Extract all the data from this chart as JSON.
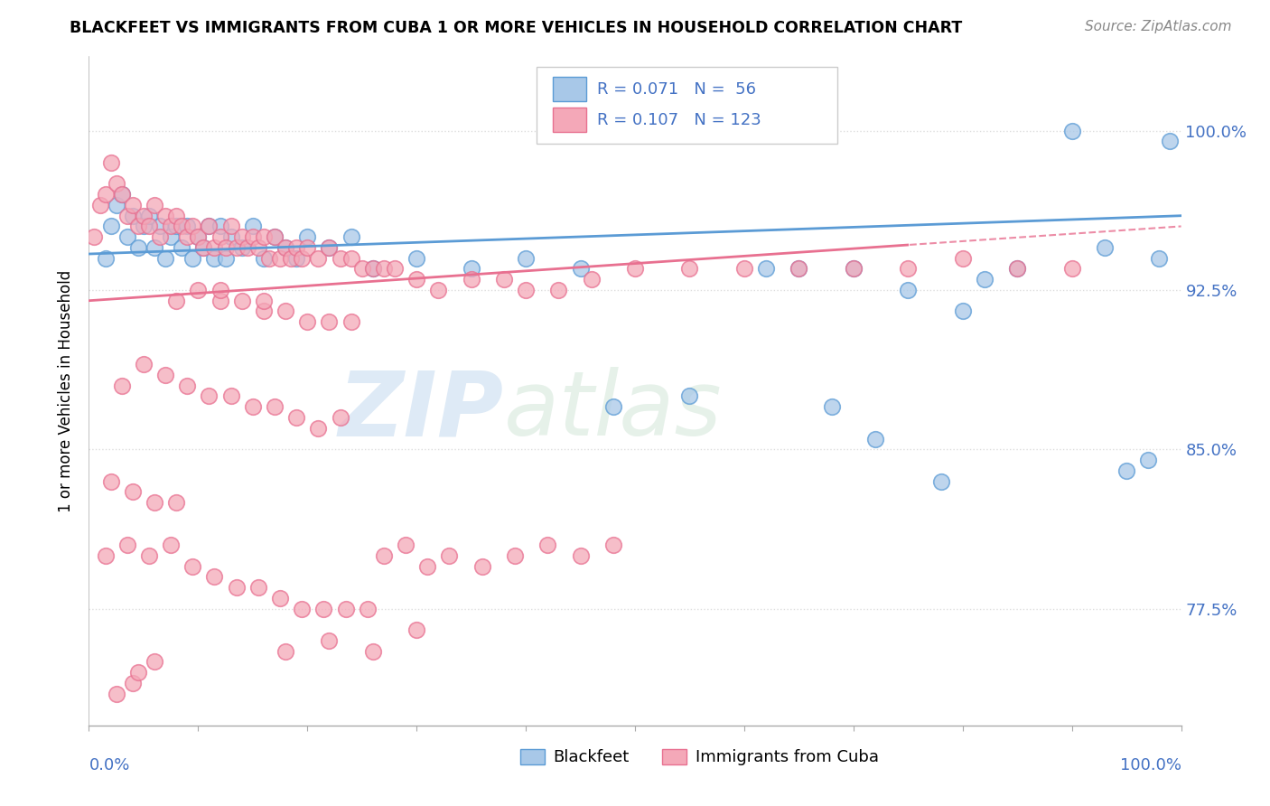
{
  "title": "BLACKFEET VS IMMIGRANTS FROM CUBA 1 OR MORE VEHICLES IN HOUSEHOLD CORRELATION CHART",
  "source": "Source: ZipAtlas.com",
  "ylabel_labels": [
    "77.5%",
    "85.0%",
    "92.5%",
    "100.0%"
  ],
  "ylabel_values": [
    77.5,
    85.0,
    92.5,
    100.0
  ],
  "xmin": 0.0,
  "xmax": 100.0,
  "ymin": 72.0,
  "ymax": 103.5,
  "watermark_zip": "ZIP",
  "watermark_atlas": "atlas",
  "blue_color": "#A8C8E8",
  "blue_edge_color": "#5B9BD5",
  "pink_color": "#F4A8B8",
  "pink_edge_color": "#E87090",
  "blue_line_color": "#5B9BD5",
  "pink_line_color": "#E87090",
  "legend_text_color": "#4472C4",
  "axis_label_color": "#4472C4",
  "grid_color": "#DDDDDD",
  "blue_x": [
    1.5,
    2.0,
    2.5,
    3.0,
    3.5,
    4.0,
    4.5,
    5.0,
    5.5,
    6.0,
    6.5,
    7.0,
    7.5,
    8.0,
    8.5,
    9.0,
    9.5,
    10.0,
    10.5,
    11.0,
    11.5,
    12.0,
    12.5,
    13.0,
    14.0,
    15.0,
    16.0,
    17.0,
    18.0,
    19.0,
    20.0,
    22.0,
    24.0,
    26.0,
    30.0,
    35.0,
    40.0,
    45.0,
    48.0,
    55.0,
    62.0,
    70.0,
    75.0,
    80.0,
    82.0,
    85.0,
    90.0,
    93.0,
    95.0,
    97.0,
    98.0,
    99.0,
    65.0,
    68.0,
    72.0,
    78.0
  ],
  "blue_y": [
    94.0,
    95.5,
    96.5,
    97.0,
    95.0,
    96.0,
    94.5,
    95.5,
    96.0,
    94.5,
    95.5,
    94.0,
    95.0,
    95.5,
    94.5,
    95.5,
    94.0,
    95.0,
    94.5,
    95.5,
    94.0,
    95.5,
    94.0,
    95.0,
    94.5,
    95.5,
    94.0,
    95.0,
    94.5,
    94.0,
    95.0,
    94.5,
    95.0,
    93.5,
    94.0,
    93.5,
    94.0,
    93.5,
    87.0,
    87.5,
    93.5,
    93.5,
    92.5,
    91.5,
    93.0,
    93.5,
    100.0,
    94.5,
    84.0,
    84.5,
    94.0,
    99.5,
    93.5,
    87.0,
    85.5,
    83.5
  ],
  "pink_x": [
    0.5,
    1.0,
    1.5,
    2.0,
    2.5,
    3.0,
    3.5,
    4.0,
    4.5,
    5.0,
    5.5,
    6.0,
    6.5,
    7.0,
    7.5,
    8.0,
    8.5,
    9.0,
    9.5,
    10.0,
    10.5,
    11.0,
    11.5,
    12.0,
    12.5,
    13.0,
    13.5,
    14.0,
    14.5,
    15.0,
    15.5,
    16.0,
    16.5,
    17.0,
    17.5,
    18.0,
    18.5,
    19.0,
    19.5,
    20.0,
    21.0,
    22.0,
    23.0,
    24.0,
    25.0,
    26.0,
    27.0,
    28.0,
    30.0,
    32.0,
    35.0,
    38.0,
    40.0,
    43.0,
    46.0,
    50.0,
    55.0,
    60.0,
    65.0,
    70.0,
    75.0,
    80.0,
    85.0,
    90.0,
    10.0,
    12.0,
    14.0,
    16.0,
    18.0,
    20.0,
    22.0,
    24.0,
    3.0,
    5.0,
    7.0,
    9.0,
    11.0,
    13.0,
    15.0,
    17.0,
    19.0,
    21.0,
    23.0,
    2.0,
    4.0,
    6.0,
    8.0,
    1.5,
    3.5,
    5.5,
    7.5,
    9.5,
    11.5,
    13.5,
    15.5,
    17.5,
    19.5,
    21.5,
    23.5,
    25.5,
    27.0,
    29.0,
    31.0,
    33.0,
    36.0,
    39.0,
    42.0,
    45.0,
    48.0,
    18.0,
    22.0,
    26.0,
    30.0,
    8.0,
    12.0,
    16.0,
    4.0,
    6.0,
    2.5,
    4.5
  ],
  "pink_y": [
    95.0,
    96.5,
    97.0,
    98.5,
    97.5,
    97.0,
    96.0,
    96.5,
    95.5,
    96.0,
    95.5,
    96.5,
    95.0,
    96.0,
    95.5,
    96.0,
    95.5,
    95.0,
    95.5,
    95.0,
    94.5,
    95.5,
    94.5,
    95.0,
    94.5,
    95.5,
    94.5,
    95.0,
    94.5,
    95.0,
    94.5,
    95.0,
    94.0,
    95.0,
    94.0,
    94.5,
    94.0,
    94.5,
    94.0,
    94.5,
    94.0,
    94.5,
    94.0,
    94.0,
    93.5,
    93.5,
    93.5,
    93.5,
    93.0,
    92.5,
    93.0,
    93.0,
    92.5,
    92.5,
    93.0,
    93.5,
    93.5,
    93.5,
    93.5,
    93.5,
    93.5,
    94.0,
    93.5,
    93.5,
    92.5,
    92.0,
    92.0,
    91.5,
    91.5,
    91.0,
    91.0,
    91.0,
    88.0,
    89.0,
    88.5,
    88.0,
    87.5,
    87.5,
    87.0,
    87.0,
    86.5,
    86.0,
    86.5,
    83.5,
    83.0,
    82.5,
    82.5,
    80.0,
    80.5,
    80.0,
    80.5,
    79.5,
    79.0,
    78.5,
    78.5,
    78.0,
    77.5,
    77.5,
    77.5,
    77.5,
    80.0,
    80.5,
    79.5,
    80.0,
    79.5,
    80.0,
    80.5,
    80.0,
    80.5,
    75.5,
    76.0,
    75.5,
    76.5,
    92.0,
    92.5,
    92.0,
    74.0,
    75.0,
    73.5,
    74.5
  ]
}
